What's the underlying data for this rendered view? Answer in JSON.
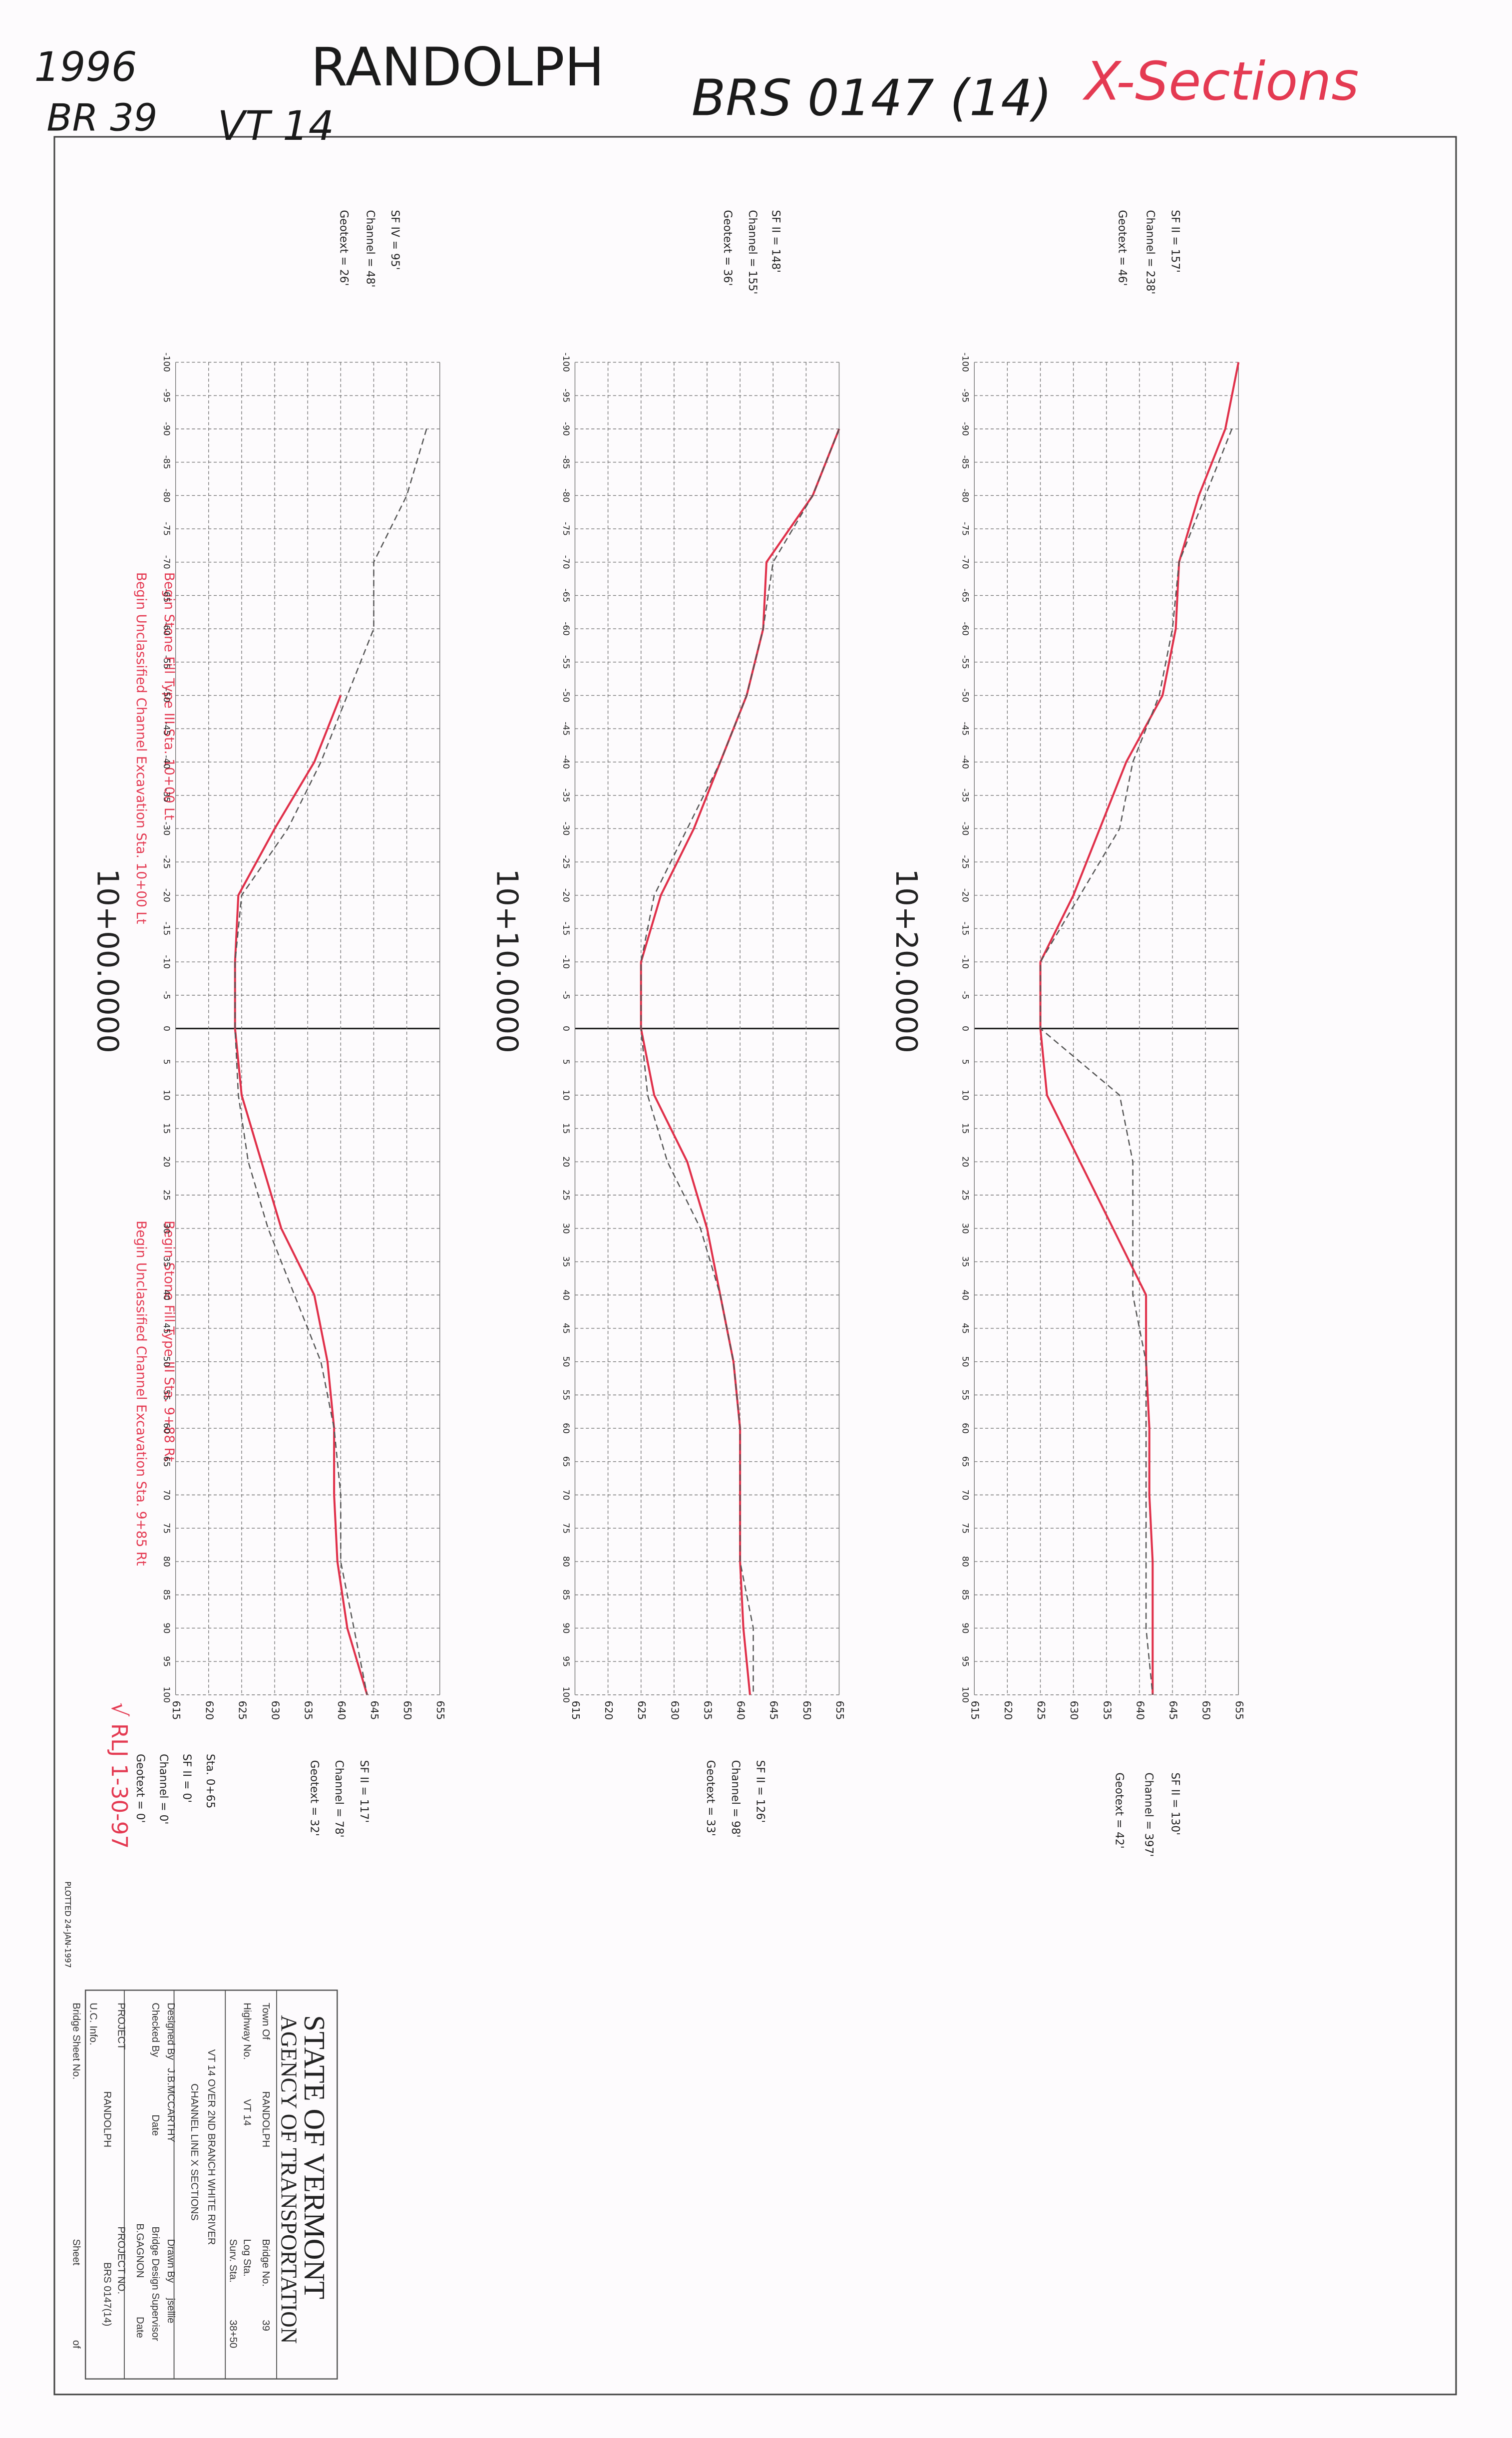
{
  "header": {
    "year": "1996",
    "bridge": "BR 39",
    "town": "RANDOLPH",
    "route": "VT 14",
    "project": "BRS 0147 (14)",
    "title": "X-Sections"
  },
  "chart_data": [
    {
      "type": "line",
      "title": "10+00.0000",
      "x": [
        -100,
        -90,
        -80,
        -70,
        -60,
        -50,
        -40,
        -30,
        -20,
        -10,
        0,
        10,
        20,
        30,
        40,
        50,
        60,
        70,
        80,
        90,
        100
      ],
      "series": [
        {
          "color": "#e0304a",
          "line_style": "solid",
          "values": [
            null,
            null,
            null,
            null,
            null,
            640,
            636,
            630,
            624.5,
            624,
            624,
            625,
            628,
            631,
            636,
            638,
            639,
            639,
            639.5,
            641,
            644
          ]
        },
        {
          "color": "#555555",
          "line_style": "dashed",
          "values": [
            null,
            653,
            650,
            645,
            645,
            641,
            637,
            632,
            625,
            624,
            624,
            624.5,
            626,
            629,
            633,
            637,
            639,
            640,
            640,
            642,
            644
          ]
        }
      ],
      "xlim": [
        -100,
        100
      ],
      "ylim": [
        615,
        655
      ],
      "xticks": [
        -100,
        -95,
        -90,
        -85,
        -80,
        -75,
        -70,
        -65,
        -60,
        -55,
        -50,
        -45,
        -40,
        -35,
        -30,
        -25,
        -20,
        -15,
        -10,
        -5,
        0,
        5,
        10,
        15,
        20,
        25,
        30,
        35,
        40,
        45,
        50,
        55,
        60,
        65,
        70,
        75,
        80,
        85,
        90,
        95,
        100
      ],
      "yticks": [
        615,
        620,
        625,
        630,
        635,
        640,
        645,
        650,
        655
      ],
      "grid": true,
      "annotations_top": [
        "SF IV = 95'",
        "Channel = 48'",
        "Geotext = 26'"
      ],
      "annotations_bottom": [
        "SF II = 117'",
        "Channel = 78'",
        "Geotext = 32'"
      ]
    },
    {
      "type": "line",
      "title": "10+10.0000",
      "x": [
        -100,
        -90,
        -80,
        -70,
        -60,
        -50,
        -40,
        -30,
        -20,
        -10,
        0,
        10,
        20,
        30,
        40,
        50,
        60,
        70,
        80,
        90,
        100
      ],
      "series": [
        {
          "color": "#e0304a",
          "line_style": "solid",
          "values": [
            null,
            655,
            651,
            644,
            643.5,
            641,
            637,
            633,
            628,
            625,
            625,
            627,
            632,
            635,
            637,
            639,
            640,
            640,
            640,
            640.5,
            641.5
          ]
        },
        {
          "color": "#555555",
          "line_style": "dashed",
          "values": [
            null,
            655,
            651,
            645,
            643.5,
            641,
            637,
            632,
            627,
            625,
            625,
            626,
            629,
            634,
            637,
            639,
            640,
            640,
            640,
            642,
            642
          ]
        }
      ],
      "xlim": [
        -100,
        100
      ],
      "ylim": [
        615,
        655
      ],
      "xticks": [
        -100,
        -95,
        -90,
        -85,
        -80,
        -75,
        -70,
        -65,
        -60,
        -55,
        -50,
        -45,
        -40,
        -35,
        -30,
        -25,
        -20,
        -15,
        -10,
        -5,
        0,
        5,
        10,
        15,
        20,
        25,
        30,
        35,
        40,
        45,
        50,
        55,
        60,
        65,
        70,
        75,
        80,
        85,
        90,
        95,
        100
      ],
      "yticks": [
        615,
        620,
        625,
        630,
        635,
        640,
        645,
        650,
        655
      ],
      "grid": true,
      "annotations_top": [
        "SF II = 148'",
        "Channel = 155'",
        "Geotext = 36'"
      ],
      "annotations_bottom": [
        "SF II = 126'",
        "Channel = 98'",
        "Geotext = 33'"
      ]
    },
    {
      "type": "line",
      "title": "10+20.0000",
      "x": [
        -100,
        -90,
        -80,
        -70,
        -60,
        -50,
        -40,
        -30,
        -20,
        -10,
        0,
        10,
        20,
        30,
        40,
        50,
        60,
        70,
        80,
        90,
        100
      ],
      "series": [
        {
          "color": "#e0304a",
          "line_style": "solid",
          "values": [
            655,
            653,
            649,
            646,
            645.5,
            643.5,
            638,
            634,
            630,
            625,
            625,
            626,
            631,
            636,
            641,
            641,
            641.5,
            641.5,
            642,
            642,
            642
          ]
        },
        {
          "color": "#555555",
          "line_style": "dashed",
          "values": [
            null,
            654,
            650,
            646,
            645,
            643,
            639,
            637,
            631,
            625,
            625,
            637,
            639,
            639,
            639,
            641,
            641,
            641,
            641,
            641,
            642
          ]
        }
      ],
      "xlim": [
        -100,
        100
      ],
      "ylim": [
        615,
        655
      ],
      "xticks": [
        -100,
        -95,
        -90,
        -85,
        -80,
        -75,
        -70,
        -65,
        -60,
        -55,
        -50,
        -45,
        -40,
        -35,
        -30,
        -25,
        -20,
        -15,
        -10,
        -5,
        0,
        5,
        10,
        15,
        20,
        25,
        30,
        35,
        40,
        45,
        50,
        55,
        60,
        65,
        70,
        75,
        80,
        85,
        90,
        95,
        100
      ],
      "yticks": [
        615,
        620,
        625,
        630,
        635,
        640,
        645,
        650,
        655
      ],
      "grid": true,
      "annotations_top": [
        "SF II = 157'",
        "Channel = 238'",
        "Geotext = 46'"
      ],
      "annotations_bottom": [
        "SF II = 130'",
        "Channel = 397'",
        "Geotext = 42'"
      ]
    }
  ],
  "notes": {
    "begin_fill_lt": "Begin Stone Fill Type III Sta. 10+00 Lt",
    "begin_exc_lt": "Begin Unclassified Channel Excavation Sta. 10+00 Lt",
    "begin_fill_rt": "Begin Stone Fill Type III Sta. 9+88 Rt",
    "begin_exc_rt": "Begin Unclassified Channel Excavation Sta. 9+85 Rt",
    "sta": "Sta. 0+65",
    "sf": "SF II = 0'",
    "channel": "Channel = 0'",
    "geotext": "Geotext = 0'",
    "check": "√ RLJ 1-30-97",
    "plotted": "PLOTTED 24-JAN-1997"
  },
  "title_block": {
    "state": "STATE OF VERMONT",
    "agency": "AGENCY OF TRANSPORTATION",
    "town_label": "Town Of",
    "town": "RANDOLPH",
    "bridge_label": "Bridge No.",
    "bridge": "39",
    "highway_label": "Highway No.",
    "highway": "VT 14",
    "log_label": "Log Sta.",
    "surv_label": "Surv. Sta.",
    "surv": "38+50",
    "desc1": "VT 14 OVER 2ND BRANCH WHITE RIVER",
    "desc2": "CHANNEL LINE X SECTIONS",
    "designed_label": "Designed By",
    "designed": "J.B.MCCARTHY",
    "drawn_label": "Drawn By",
    "drawn": "jsellie",
    "checked_label": "Checked By",
    "date1": "Date",
    "supervisor_label": "Bridge Design Supervisor",
    "supervisor": "B.GAGNON",
    "date2": "Date",
    "project_label": "PROJECT",
    "project": "RANDOLPH",
    "project_no_label": "PROJECT NO.",
    "project_no": "BRS 0147(14)",
    "uc_label": "U.C. Info.",
    "sheet_no_label": "Bridge Sheet No.",
    "sheet_label": "Sheet",
    "of_label": "of"
  }
}
